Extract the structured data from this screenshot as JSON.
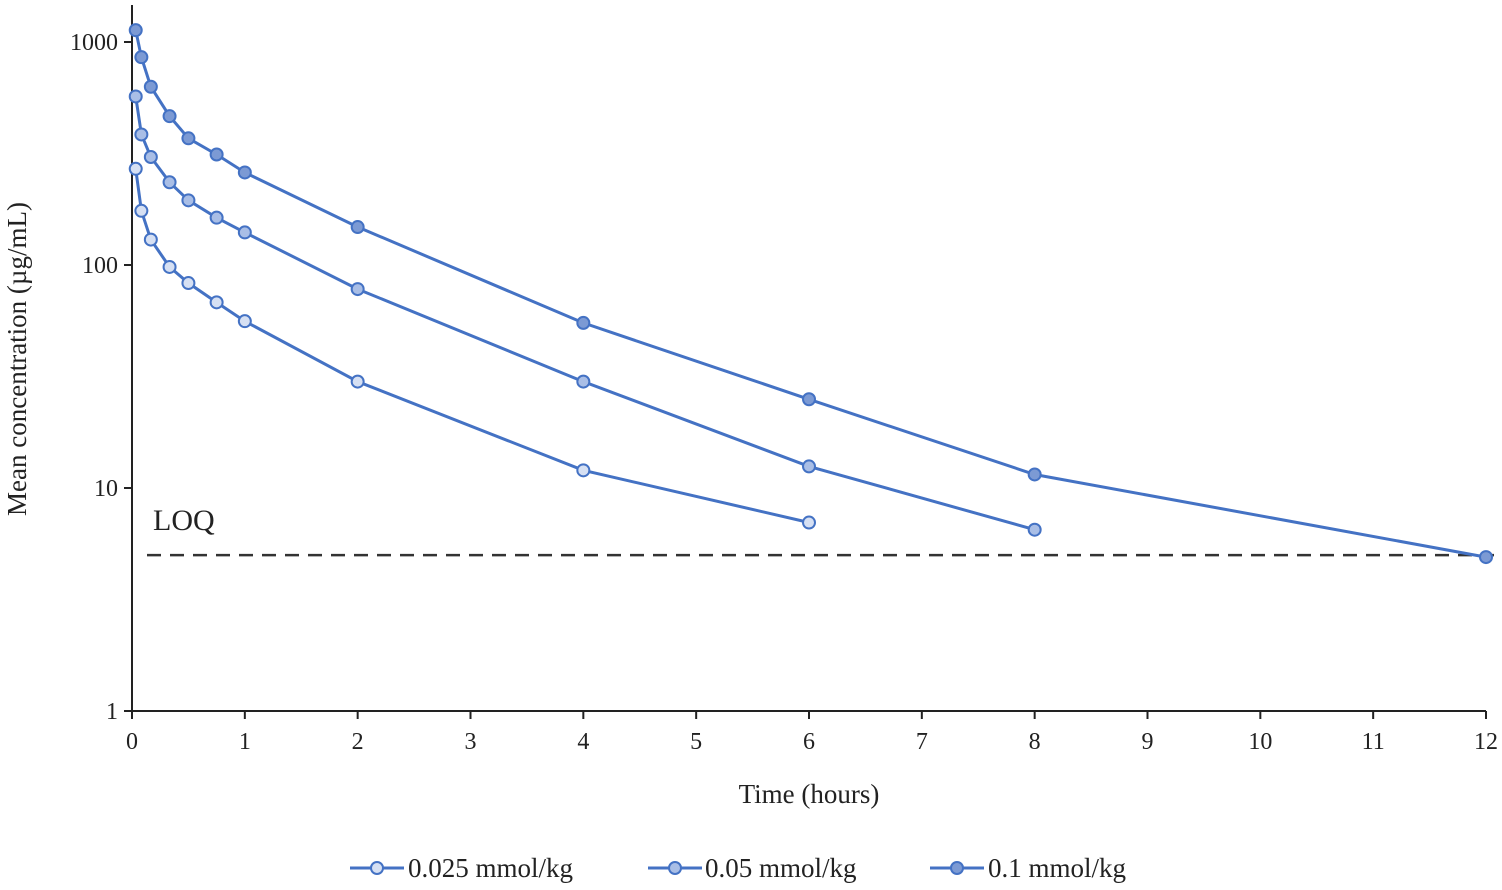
{
  "chart_data": {
    "type": "line",
    "title": "",
    "xlabel": "Time (hours)",
    "ylabel": "Mean concentration (µg/mL)",
    "xlim": [
      0,
      12
    ],
    "ylim": [
      1,
      1500
    ],
    "y_scale": "log",
    "x_ticks": [
      "0",
      "1",
      "2",
      "3",
      "4",
      "5",
      "6",
      "7",
      "8",
      "9",
      "10",
      "11",
      "12"
    ],
    "y_ticks": [
      "1",
      "10",
      "100",
      "1000"
    ],
    "grid": false,
    "legend_position": "bottom",
    "reference_line": {
      "label": "LOQ",
      "y": 5,
      "style": "dashed",
      "color": "#333333"
    },
    "series": [
      {
        "name": "0.025 mmol/kg",
        "color": "#4472c4",
        "marker_fill": "#d6e0f3",
        "x": [
          0.033,
          0.083,
          0.167,
          0.333,
          0.5,
          0.75,
          1,
          2,
          4,
          6
        ],
        "y": [
          270,
          175,
          130,
          98,
          83,
          68,
          56,
          30,
          12,
          7
        ]
      },
      {
        "name": "0.05 mmol/kg",
        "color": "#4472c4",
        "marker_fill": "#a9bee6",
        "x": [
          0.033,
          0.083,
          0.167,
          0.333,
          0.5,
          0.75,
          1,
          2,
          4,
          6,
          8
        ],
        "y": [
          570,
          385,
          305,
          235,
          195,
          163,
          140,
          78,
          30,
          12.5,
          6.5
        ]
      },
      {
        "name": "0.1 mmol/kg",
        "color": "#4472c4",
        "marker_fill": "#7c9ad4",
        "x": [
          0.033,
          0.083,
          0.167,
          0.333,
          0.5,
          0.75,
          1,
          2,
          4,
          6,
          8,
          12
        ],
        "y": [
          1130,
          855,
          630,
          465,
          370,
          313,
          260,
          148,
          55,
          25,
          11.5,
          4.9
        ]
      }
    ]
  }
}
